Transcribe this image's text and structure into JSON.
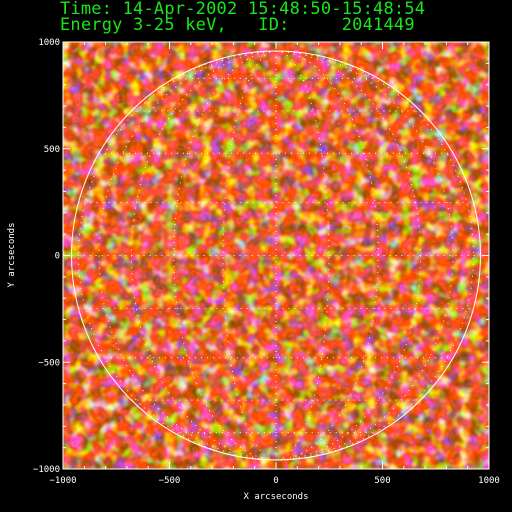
{
  "header": {
    "line1": "Time: 14-Apr-2002 15:48:50-15:48:54",
    "line2": "Energy 3-25 keV,   ID:     2041449"
  },
  "chart_data": {
    "type": "heatmap",
    "description_colors": {
      "background": "#000000",
      "plot_frame": "#ffffff",
      "limb_circle": "#ffffff",
      "header_text": "#19e619",
      "colormap": [
        "#000000",
        "#2a0a6e",
        "#5a1fb0",
        "#7a1020",
        "#c81e0a",
        "#ff5a00",
        "#ffb400",
        "#ffff80",
        "#ffffff"
      ]
    },
    "xlabel": "X arcseconds",
    "ylabel": "Y arcseconds",
    "xlim": [
      -1000,
      1000
    ],
    "ylim": [
      -1000,
      1000
    ],
    "x_ticks": [
      -1000,
      -500,
      0,
      500,
      1000
    ],
    "y_ticks": [
      1000,
      500,
      0,
      -500,
      -1000
    ],
    "x_tick_labels": [
      "−1000",
      "−500",
      "0",
      "500",
      "1000"
    ],
    "y_tick_labels": [
      "1000",
      "500",
      "0",
      "−500",
      "−1000"
    ],
    "solar_limb_radius_arcsec": 960,
    "grid": "dotted heliographic grid inside limb"
  }
}
